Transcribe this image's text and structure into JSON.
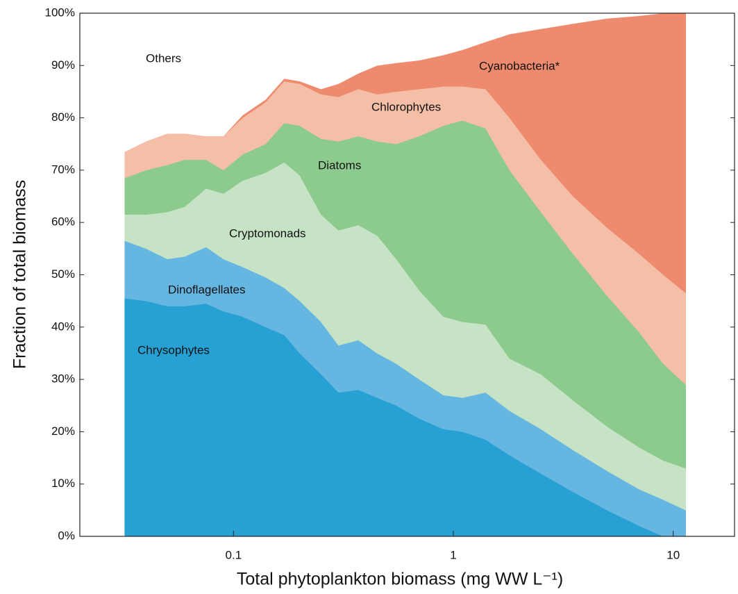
{
  "chart_data": {
    "type": "stacked-area",
    "xlabel": "Total phytoplankton biomass (mg WW L⁻¹)",
    "ylabel": "Fraction of total biomass",
    "xscale": "log",
    "xlim": [
      0.02,
      19
    ],
    "ylim": [
      0,
      100
    ],
    "xticks": [
      0.1,
      1,
      10
    ],
    "yticks": [
      {
        "value": 0,
        "label": "0%"
      },
      {
        "value": 10,
        "label": "10%"
      },
      {
        "value": 20,
        "label": "20%"
      },
      {
        "value": 30,
        "label": "30%"
      },
      {
        "value": 40,
        "label": "40%"
      },
      {
        "value": 50,
        "label": "50%"
      },
      {
        "value": 60,
        "label": "60%"
      },
      {
        "value": 70,
        "label": "70%"
      },
      {
        "value": 80,
        "label": "80%"
      },
      {
        "value": 90,
        "label": "90%"
      },
      {
        "value": 100,
        "label": "100%"
      }
    ],
    "x": [
      0.032,
      0.04,
      0.05,
      0.06,
      0.075,
      0.09,
      0.11,
      0.14,
      0.17,
      0.2,
      0.25,
      0.3,
      0.37,
      0.45,
      0.55,
      0.7,
      0.9,
      1.1,
      1.4,
      1.8,
      2.5,
      3.5,
      5,
      7,
      9,
      11.4
    ],
    "series": [
      {
        "name": "Chrysophytes",
        "color": "#27a0d4",
        "values": [
          45.5,
          45,
          44,
          44,
          44.5,
          43,
          42,
          40,
          38.5,
          35,
          31,
          27.5,
          28,
          26.5,
          25,
          22.5,
          20.5,
          20,
          18.5,
          15.5,
          12,
          8.5,
          5,
          2,
          0,
          0
        ]
      },
      {
        "name": "Dinoflagellates",
        "color": "#65b6e1",
        "values": [
          11,
          10,
          9,
          9.5,
          10.8,
          10,
          9.5,
          9.5,
          9,
          10,
          10,
          9,
          9.5,
          8.5,
          8,
          7.5,
          6.5,
          6.5,
          9,
          8.5,
          8.5,
          8,
          7.5,
          7,
          7,
          5
        ]
      },
      {
        "name": "Cryptomonads",
        "color": "#c6e4c5",
        "values": [
          5,
          6.5,
          9,
          9.5,
          11.2,
          12.5,
          16.5,
          20,
          24,
          24,
          20.5,
          22,
          22,
          22.5,
          20,
          17,
          15,
          14.5,
          13,
          10,
          10.5,
          9.5,
          8.5,
          8,
          7.5,
          8
        ]
      },
      {
        "name": "Diatoms",
        "color": "#8dca8d",
        "values": [
          7,
          8.5,
          9,
          9,
          5.5,
          4.5,
          5,
          5.5,
          7.5,
          9.5,
          14.5,
          17,
          17,
          18,
          22,
          29.5,
          36.5,
          38.5,
          37.5,
          36,
          31,
          28,
          25,
          22,
          18.5,
          16
        ]
      },
      {
        "name": "Chlorophytes",
        "color": "#f5bea7",
        "values": [
          5,
          5.5,
          6,
          5,
          4.5,
          6.5,
          7,
          8,
          8,
          8,
          8.5,
          8.5,
          9,
          9,
          10,
          9,
          7.5,
          6.5,
          7.5,
          10,
          10,
          11,
          13,
          15,
          17,
          17.5
        ]
      },
      {
        "name": "Cyanobacteria*",
        "color": "#ee8b6e",
        "values": [
          0,
          0,
          0,
          0,
          0,
          0,
          0.5,
          0.5,
          0.5,
          0.5,
          1,
          2.5,
          3,
          5.5,
          5.5,
          5.5,
          6,
          7,
          9,
          16,
          25,
          33,
          40,
          45.5,
          50,
          53.5
        ]
      },
      {
        "name": "Others",
        "color": "#ffffff",
        "values": [
          26.5,
          24.5,
          23,
          23,
          23.5,
          23.5,
          19.5,
          16.5,
          12.5,
          13,
          14.5,
          13.5,
          11.5,
          10,
          9.5,
          9,
          8,
          7,
          5.5,
          4,
          3,
          2,
          1,
          0.5,
          0,
          0
        ]
      }
    ]
  }
}
